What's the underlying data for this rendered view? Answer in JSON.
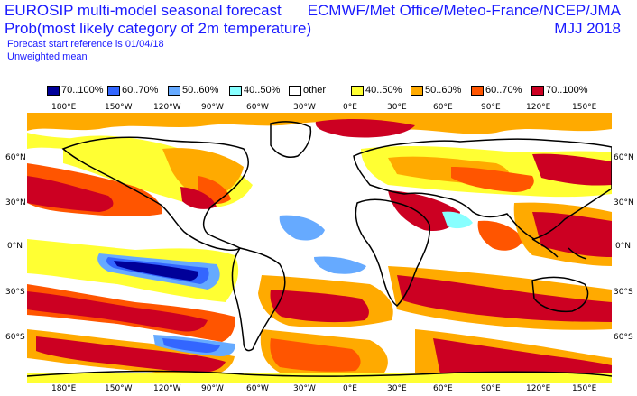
{
  "header": {
    "title_line1": "EUROSIP multi-model seasonal forecast",
    "title_line2": "Prob(most likely category of 2m temperature)",
    "forecast_ref": "Forecast start reference is 01/04/18",
    "weighting": "Unweighted mean",
    "models": "ECMWF/Met Office/Meteo-France/NCEP/JMA",
    "season": "MJJ 2018"
  },
  "legend": [
    {
      "label": "70..100%",
      "color": "#000099"
    },
    {
      "label": "60..70%",
      "color": "#3366ff"
    },
    {
      "label": "50..60%",
      "color": "#66aaff"
    },
    {
      "label": "40..50%",
      "color": "#88ffff"
    },
    {
      "label": "other",
      "color": "#ffffff"
    },
    {
      "label": "40..50%",
      "color": "#ffff33"
    },
    {
      "label": "50..60%",
      "color": "#ffaa00"
    },
    {
      "label": "60..70%",
      "color": "#ff5500"
    },
    {
      "label": "70..100%",
      "color": "#cc0022"
    }
  ],
  "axes": {
    "lon_top": [
      "180°E",
      "150°W",
      "120°W",
      "90°W",
      "60°W",
      "30°W",
      "0°E",
      "30°E",
      "60°E",
      "90°E",
      "120°E",
      "150°E"
    ],
    "lon_bottom": [
      "180°E",
      "150°W",
      "120°W",
      "90°W",
      "60°W",
      "30°W",
      "0°E",
      "30°E",
      "60°E",
      "90°E",
      "120°E",
      "150°E"
    ],
    "lat_left": [
      "60°N",
      "30°N",
      "0°N",
      "30°S",
      "60°S"
    ],
    "lat_right": [
      "60°N",
      "30°N",
      "0°N",
      "30°S",
      "60°S"
    ]
  }
}
